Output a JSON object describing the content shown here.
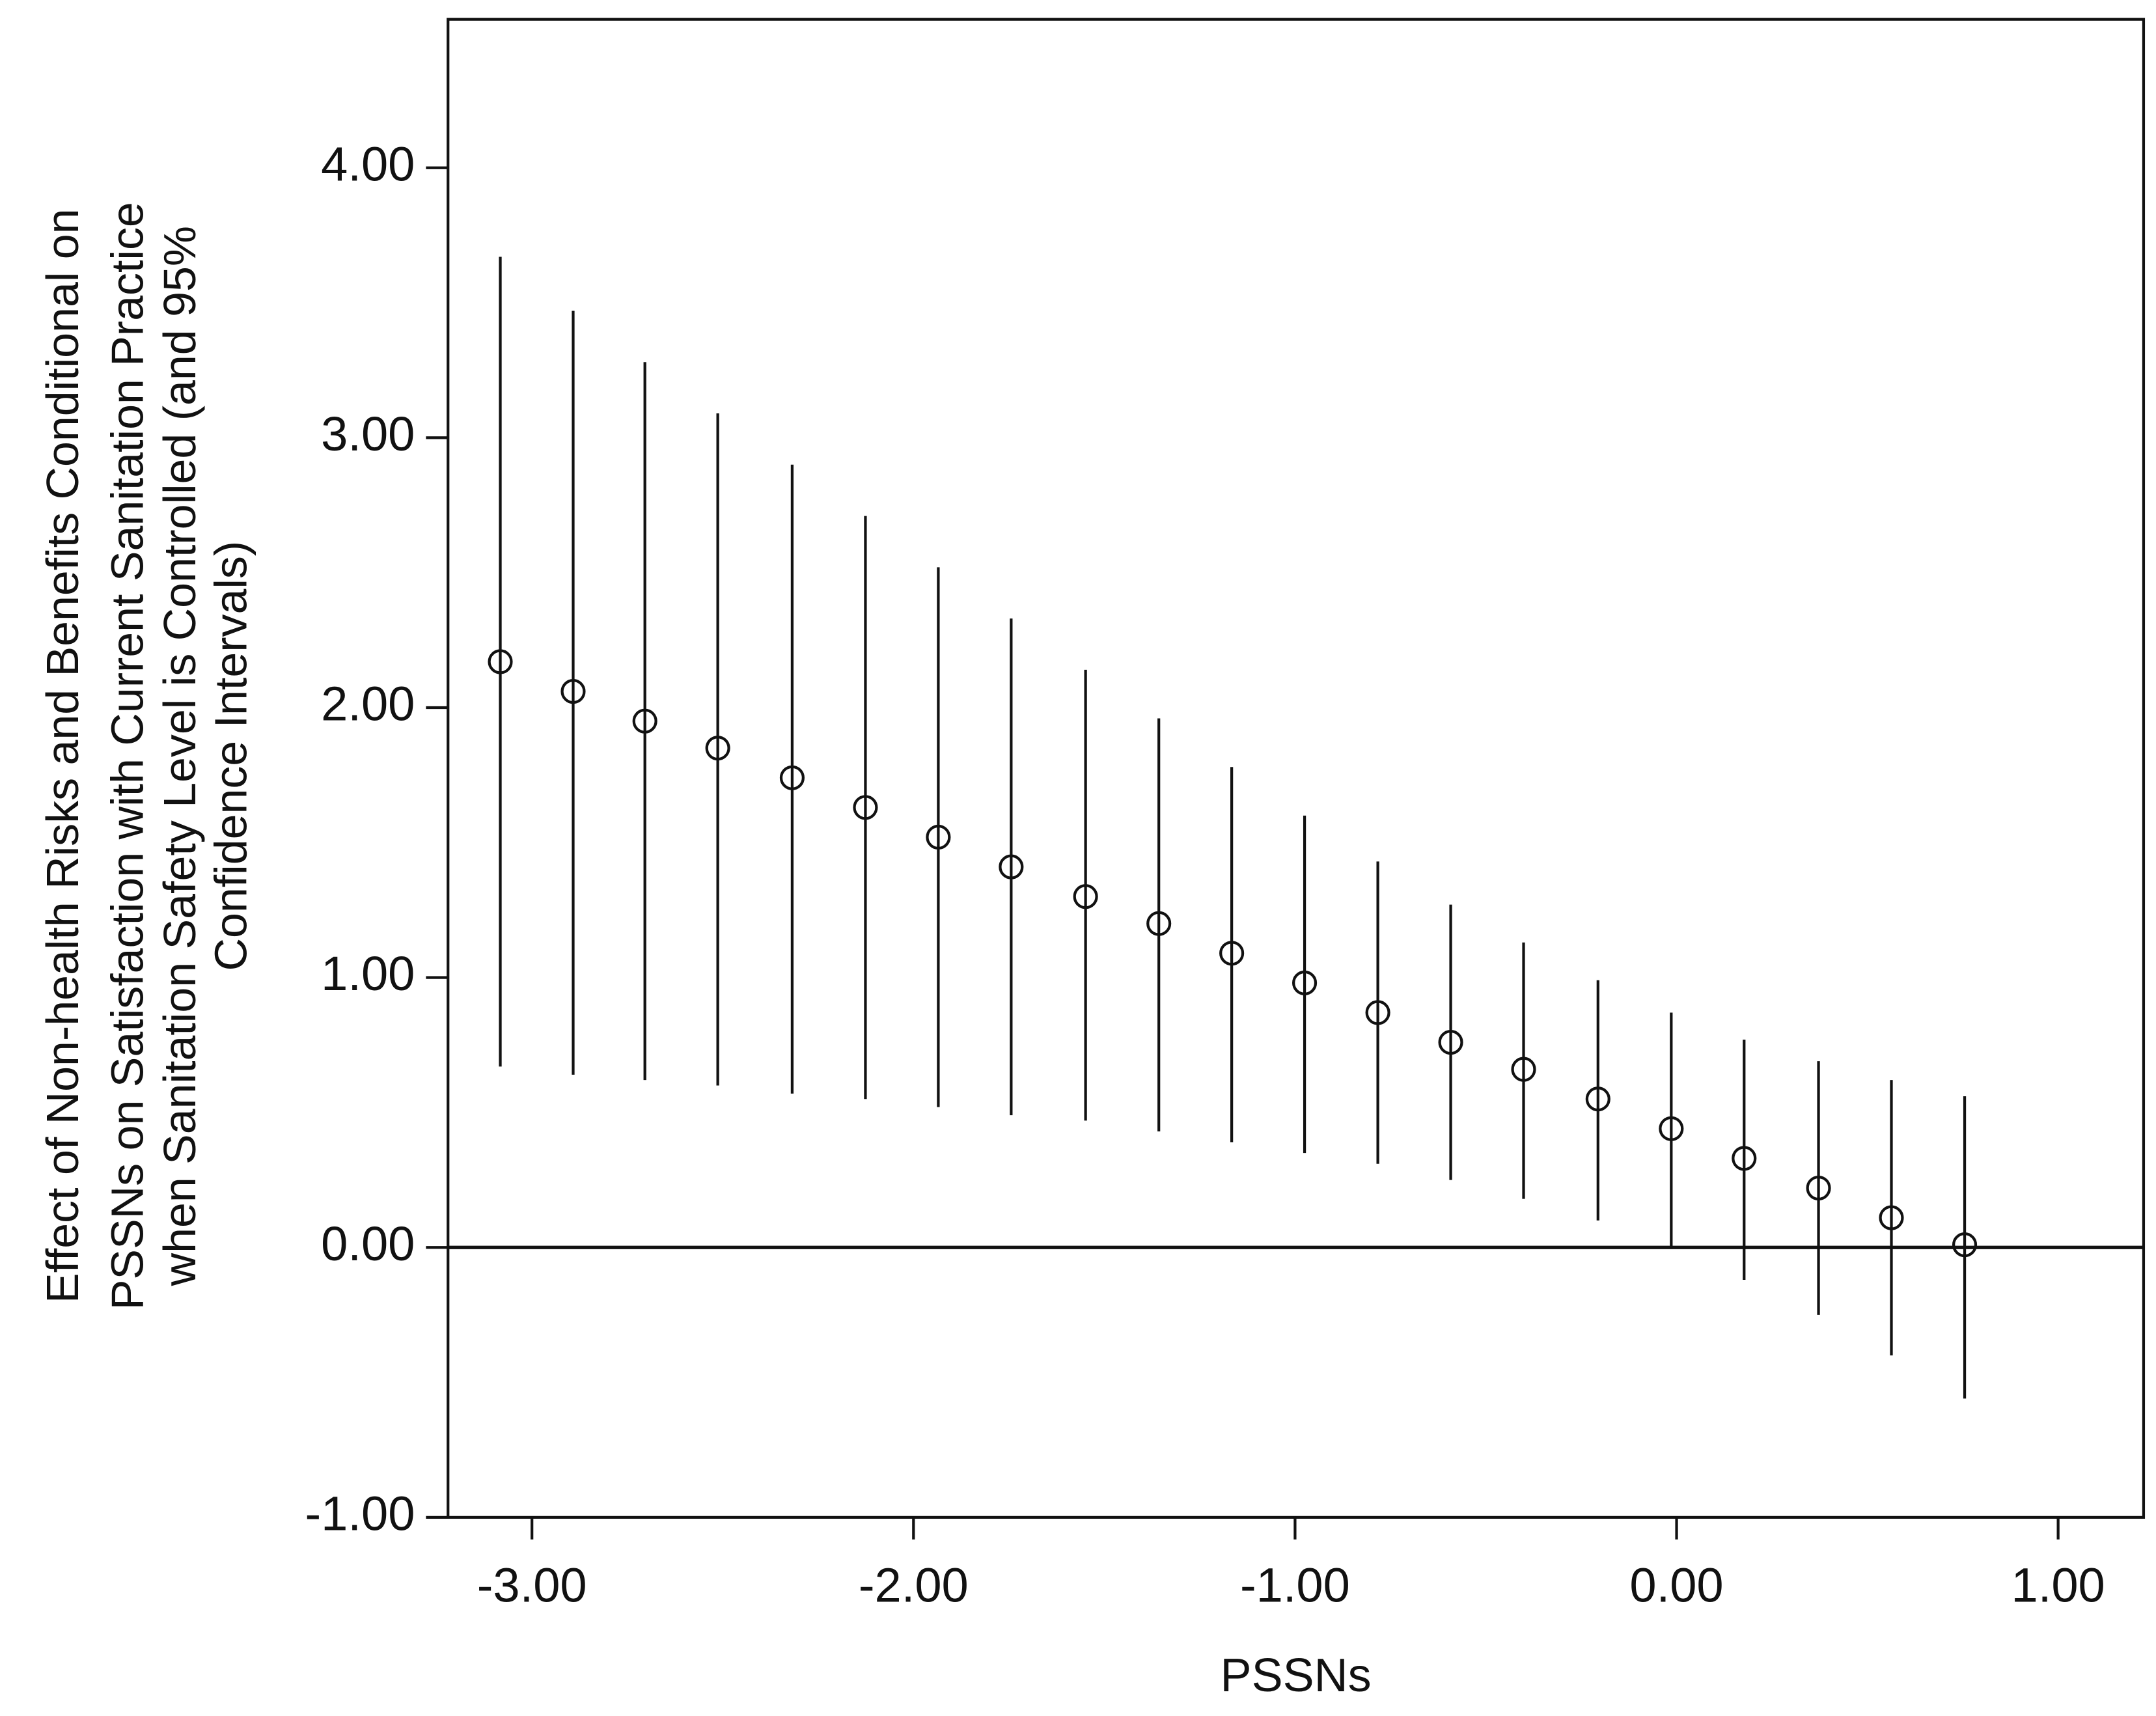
{
  "chart_data": {
    "type": "scatter",
    "xlabel": "PSSNs",
    "ylabel": [
      "Effect of Non-health Risks and Benefits Conditional on",
      "PSSNs on Satisfaction with Current Sanitation Practice",
      "when Sanitation Safety Level is Controlled (and 95%",
      "Confidence Intervals)"
    ],
    "xlim": [
      -3.22,
      1.224
    ],
    "ylim": [
      -1.0,
      4.55
    ],
    "xticks": [
      {
        "value": -3,
        "label": "-3.00"
      },
      {
        "value": -2,
        "label": "-2.00"
      },
      {
        "value": -1,
        "label": "-1.00"
      },
      {
        "value": 0,
        "label": "0.00"
      },
      {
        "value": 1,
        "label": "1.00"
      }
    ],
    "yticks": [
      {
        "value": -1,
        "label": "-1.00"
      },
      {
        "value": 0,
        "label": "0.00"
      },
      {
        "value": 1,
        "label": "1.00"
      },
      {
        "value": 2,
        "label": "2.00"
      },
      {
        "value": 3,
        "label": "3.00"
      },
      {
        "value": 4,
        "label": "4.00"
      }
    ],
    "reference_line": 0,
    "color": "#111111",
    "x": [
      -3.083,
      -2.892,
      -2.704,
      -2.513,
      -2.318,
      -2.126,
      -1.935,
      -1.744,
      -1.549,
      -1.357,
      -1.166,
      -0.975,
      -0.783,
      -0.592,
      -0.401,
      -0.206,
      -0.014,
      0.177,
      0.372,
      0.563,
      0.755
    ],
    "values": [
      2.17,
      2.06,
      1.95,
      1.85,
      1.74,
      1.63,
      1.52,
      1.41,
      1.3,
      1.2,
      1.09,
      0.98,
      0.87,
      0.76,
      0.66,
      0.55,
      0.44,
      0.33,
      0.22,
      0.11,
      0.01
    ],
    "lower": [
      0.67,
      0.64,
      0.62,
      0.6,
      0.57,
      0.55,
      0.52,
      0.49,
      0.47,
      0.43,
      0.39,
      0.35,
      0.31,
      0.25,
      0.18,
      0.1,
      0.0,
      -0.12,
      -0.25,
      -0.4,
      -0.56
    ],
    "upper": [
      3.67,
      3.47,
      3.28,
      3.09,
      2.9,
      2.71,
      2.52,
      2.33,
      2.14,
      1.96,
      1.78,
      1.6,
      1.43,
      1.27,
      1.13,
      0.99,
      0.87,
      0.77,
      0.69,
      0.62,
      0.56
    ]
  }
}
